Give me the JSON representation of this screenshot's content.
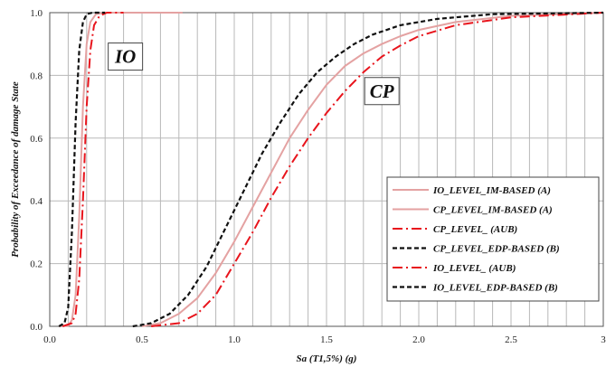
{
  "chart_data": {
    "type": "line",
    "title": "",
    "xlabel": "Sa (T1,5%) (g)",
    "ylabel": "Probability of Exceedance of damage State",
    "xlim": [
      0,
      3
    ],
    "ylim": [
      0,
      1
    ],
    "xticks": [
      "0.0",
      "0.5",
      "1.0",
      "1.5",
      "2.0",
      "2.5",
      "3"
    ],
    "yticks": [
      "0.0",
      "0.2",
      "0.4",
      "0.6",
      "0.8",
      "1.0"
    ],
    "grid": true,
    "legend_position": "center-right",
    "colors": {
      "pink": "#e4a2a2",
      "red": "#e8141c",
      "black": "#111111"
    },
    "annotations": [
      {
        "text": "IO",
        "x": 0.41,
        "y": 0.86
      },
      {
        "text": "CP",
        "x": 1.8,
        "y": 0.75
      }
    ],
    "series": [
      {
        "name": "IO_LEVEL_IM-BASED (A)",
        "color": "#e4a2a2",
        "style": "solid",
        "points": [
          [
            0.05,
            0
          ],
          [
            0.1,
            0.002
          ],
          [
            0.12,
            0.02
          ],
          [
            0.14,
            0.1
          ],
          [
            0.16,
            0.35
          ],
          [
            0.18,
            0.7
          ],
          [
            0.2,
            0.9
          ],
          [
            0.22,
            0.97
          ],
          [
            0.25,
            0.995
          ],
          [
            0.3,
            1
          ],
          [
            0.72,
            1
          ]
        ]
      },
      {
        "name": "CP_LEVEL_IM-BASED (A)",
        "color": "#e4a2a2",
        "style": "solid",
        "points": [
          [
            0.5,
            0
          ],
          [
            0.6,
            0.01
          ],
          [
            0.7,
            0.04
          ],
          [
            0.8,
            0.09
          ],
          [
            0.9,
            0.17
          ],
          [
            1.0,
            0.27
          ],
          [
            1.1,
            0.38
          ],
          [
            1.2,
            0.49
          ],
          [
            1.3,
            0.6
          ],
          [
            1.4,
            0.69
          ],
          [
            1.5,
            0.77
          ],
          [
            1.6,
            0.83
          ],
          [
            1.7,
            0.87
          ],
          [
            1.8,
            0.9
          ],
          [
            1.9,
            0.925
          ],
          [
            2.0,
            0.945
          ],
          [
            2.2,
            0.97
          ],
          [
            2.5,
            0.99
          ],
          [
            3.0,
            1
          ]
        ]
      },
      {
        "name": "CP_LEVEL_ (AUB)",
        "color": "#e8141c",
        "style": "dashdot",
        "points": [
          [
            0.55,
            0
          ],
          [
            0.7,
            0.01
          ],
          [
            0.8,
            0.04
          ],
          [
            0.9,
            0.1
          ],
          [
            1.0,
            0.2
          ],
          [
            1.1,
            0.3
          ],
          [
            1.2,
            0.41
          ],
          [
            1.3,
            0.51
          ],
          [
            1.4,
            0.6
          ],
          [
            1.5,
            0.68
          ],
          [
            1.6,
            0.75
          ],
          [
            1.7,
            0.81
          ],
          [
            1.8,
            0.86
          ],
          [
            1.9,
            0.895
          ],
          [
            2.0,
            0.925
          ],
          [
            2.2,
            0.96
          ],
          [
            2.5,
            0.985
          ],
          [
            3.0,
            1
          ]
        ]
      },
      {
        "name": "CP_LEVEL_EDP-BASED (B)",
        "color": "#111111",
        "style": "dashed",
        "points": [
          [
            0.45,
            0
          ],
          [
            0.55,
            0.01
          ],
          [
            0.65,
            0.04
          ],
          [
            0.75,
            0.1
          ],
          [
            0.85,
            0.19
          ],
          [
            0.95,
            0.31
          ],
          [
            1.05,
            0.43
          ],
          [
            1.15,
            0.55
          ],
          [
            1.25,
            0.65
          ],
          [
            1.35,
            0.74
          ],
          [
            1.45,
            0.81
          ],
          [
            1.55,
            0.86
          ],
          [
            1.65,
            0.9
          ],
          [
            1.75,
            0.93
          ],
          [
            1.9,
            0.96
          ],
          [
            2.1,
            0.98
          ],
          [
            2.4,
            0.995
          ],
          [
            3.0,
            1
          ]
        ]
      },
      {
        "name": "IO_LEVEL_ (AUB)",
        "color": "#e8141c",
        "style": "dashdot",
        "points": [
          [
            0.07,
            0
          ],
          [
            0.12,
            0.01
          ],
          [
            0.14,
            0.04
          ],
          [
            0.16,
            0.15
          ],
          [
            0.18,
            0.4
          ],
          [
            0.2,
            0.7
          ],
          [
            0.22,
            0.88
          ],
          [
            0.24,
            0.96
          ],
          [
            0.27,
            0.99
          ],
          [
            0.31,
            1
          ],
          [
            0.4,
            1
          ]
        ]
      },
      {
        "name": "IO_LEVEL_EDP-BASED (B)",
        "color": "#111111",
        "style": "dashed",
        "points": [
          [
            0.05,
            0
          ],
          [
            0.08,
            0.01
          ],
          [
            0.1,
            0.06
          ],
          [
            0.12,
            0.3
          ],
          [
            0.14,
            0.65
          ],
          [
            0.16,
            0.88
          ],
          [
            0.18,
            0.97
          ],
          [
            0.2,
            0.995
          ],
          [
            0.23,
            1
          ],
          [
            0.3,
            1
          ]
        ]
      }
    ]
  }
}
